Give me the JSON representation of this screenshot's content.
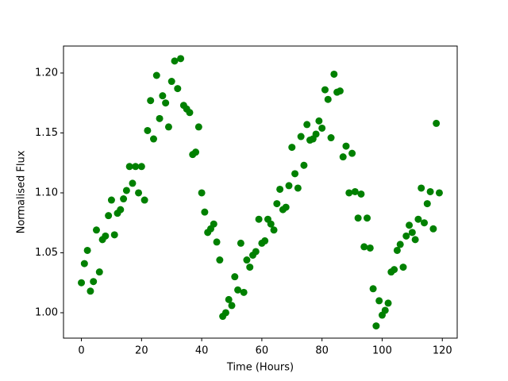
{
  "chart_data": {
    "type": "scatter",
    "xlabel": "Time (Hours)",
    "ylabel": "Normalised Flux",
    "color": "#008000",
    "x": [
      0,
      1,
      2,
      3,
      4,
      5,
      6,
      7,
      8,
      9,
      10,
      11,
      12,
      13,
      14,
      15,
      16,
      17,
      18,
      19,
      20,
      21,
      22,
      23,
      24,
      25,
      26,
      27,
      28,
      29,
      30,
      31,
      32,
      33,
      34,
      35,
      36,
      37,
      38,
      39,
      40,
      41,
      42,
      43,
      44,
      45,
      46,
      47,
      48,
      49,
      50,
      51,
      52,
      53,
      54,
      55,
      56,
      57,
      58,
      59,
      60,
      61,
      62,
      63,
      64,
      65,
      66,
      67,
      68,
      69,
      70,
      71,
      72,
      73,
      74,
      75,
      76,
      77,
      78,
      79,
      80,
      81,
      82,
      83,
      84,
      85,
      86,
      87,
      88,
      89,
      90,
      91,
      92,
      93,
      94,
      95,
      96,
      97,
      98,
      99,
      100,
      101,
      102,
      103,
      104,
      105,
      106,
      107,
      108,
      109,
      110,
      111,
      112,
      113,
      114,
      115,
      116,
      117,
      118,
      119
    ],
    "values": [
      1.025,
      1.041,
      1.052,
      1.018,
      1.026,
      1.069,
      1.034,
      1.061,
      1.064,
      1.081,
      1.094,
      1.065,
      1.083,
      1.086,
      1.095,
      1.102,
      1.122,
      1.108,
      1.122,
      1.1,
      1.122,
      1.094,
      1.152,
      1.177,
      1.145,
      1.198,
      1.162,
      1.181,
      1.175,
      1.155,
      1.193,
      1.21,
      1.187,
      1.212,
      1.173,
      1.17,
      1.167,
      1.132,
      1.134,
      1.155,
      1.1,
      1.084,
      1.067,
      1.07,
      1.074,
      1.059,
      1.044,
      0.997,
      1.0,
      1.011,
      1.006,
      1.03,
      1.019,
      1.058,
      1.017,
      1.044,
      1.038,
      1.048,
      1.051,
      1.078,
      1.058,
      1.06,
      1.078,
      1.074,
      1.069,
      1.091,
      1.103,
      1.086,
      1.088,
      1.106,
      1.138,
      1.116,
      1.104,
      1.147,
      1.123,
      1.157,
      1.144,
      1.145,
      1.149,
      1.16,
      1.154,
      1.186,
      1.178,
      1.146,
      1.199,
      1.184,
      1.185,
      1.13,
      1.139,
      1.1,
      1.133,
      1.101,
      1.079,
      1.099,
      1.055,
      1.079,
      1.054,
      1.02,
      0.989,
      1.01,
      0.998,
      1.002,
      1.008,
      1.034,
      1.036,
      1.052,
      1.057,
      1.038,
      1.064,
      1.073,
      1.067,
      1.061,
      1.078,
      1.104,
      1.075,
      1.091,
      1.101,
      1.07,
      1.158,
      1.1
    ],
    "xlim": [
      -5.95,
      124.95
    ],
    "xticks": [
      0,
      20,
      40,
      60,
      80,
      100,
      120
    ],
    "ylim": [
      0.9788,
      1.2225
    ],
    "yticks": [
      {
        "value": 1.0,
        "label": "1.00"
      },
      {
        "value": 1.05,
        "label": "1.05"
      },
      {
        "value": 1.1,
        "label": "1.10"
      },
      {
        "value": 1.15,
        "label": "1.15"
      },
      {
        "value": 1.2,
        "label": "1.20"
      }
    ]
  }
}
